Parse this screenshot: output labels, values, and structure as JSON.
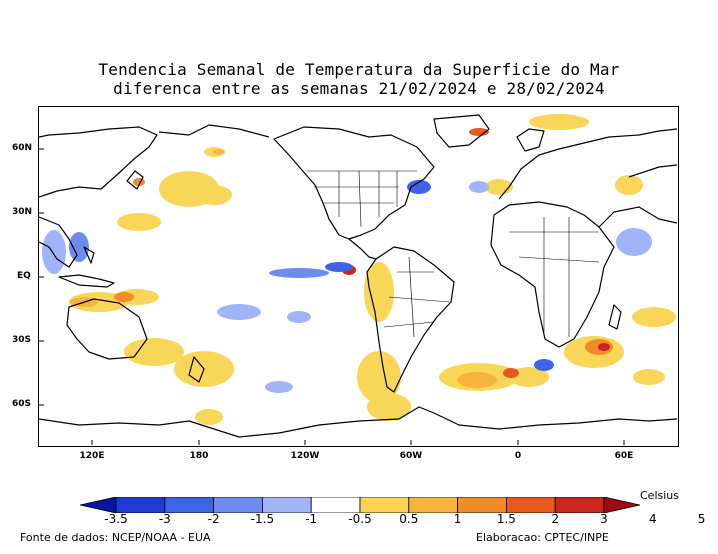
{
  "title_line1": "Tendencia Semanal de Temperatura da Superficie do Mar",
  "title_line2": "diferenca entre as semanas 21/02/2024 e 28/02/2024",
  "lat_labels": [
    "60N",
    "30N",
    "EQ",
    "30S",
    "60S"
  ],
  "lon_labels": [
    "120E",
    "180",
    "120W",
    "60W",
    "0",
    "60E"
  ],
  "colorbar": {
    "unit": "Celsius",
    "labels": [
      "-3.5",
      "-3",
      "-2",
      "-1.5",
      "-1",
      "-0.5",
      "0.5",
      "1",
      "1.5",
      "2",
      "3",
      "4",
      "5"
    ],
    "colors": [
      "#0a14a0",
      "#1e3cd2",
      "#3c64e6",
      "#6e8cf0",
      "#a0b4f8",
      "#ffffff",
      "#f8d450",
      "#f5b43c",
      "#f08c28",
      "#e65a1e",
      "#c8281e",
      "#a00a14"
    ]
  },
  "source_left": "Fonte de dados: NCEP/NOAA - EUA",
  "source_right": "Elaboracao: CPTEC/INPE"
}
